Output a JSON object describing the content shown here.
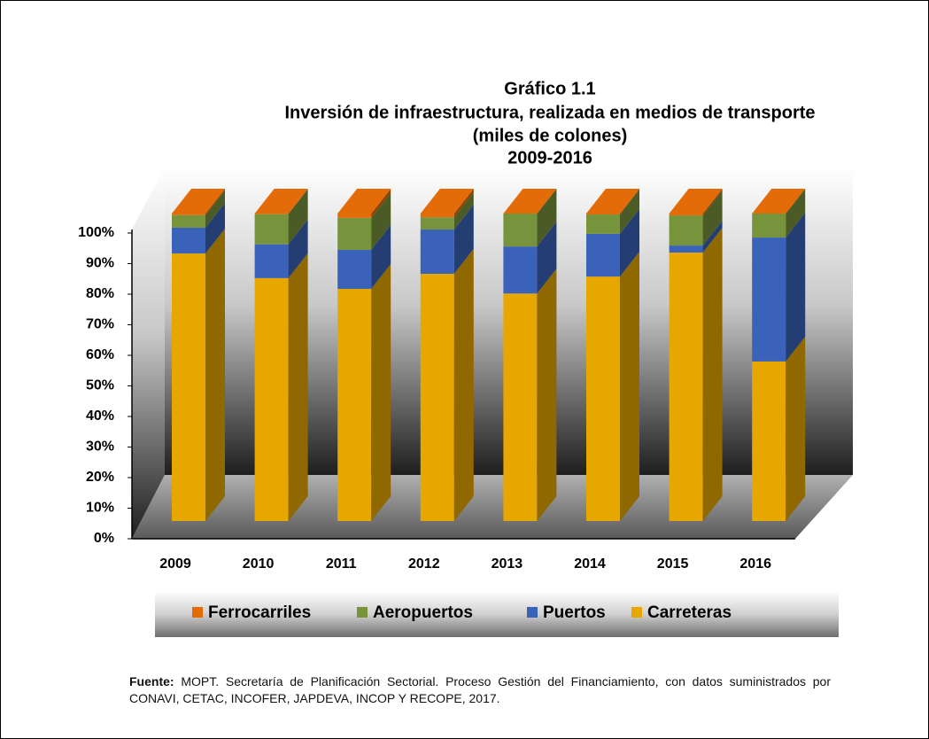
{
  "chart_data": {
    "type": "bar3d_stacked",
    "title": "Gráfico 1.1",
    "subtitle_lines": [
      "Inversión de infraestructura,  realizada en medios de transporte",
      "(miles de colones)",
      "2009-2016"
    ],
    "categories": [
      "2009",
      "2010",
      "2011",
      "2012",
      "2013",
      "2014",
      "2015",
      "2016"
    ],
    "series": [
      {
        "name": "Carreteras",
        "color": "#e6a800",
        "values": [
          87,
          79,
          75.5,
          80.4,
          74,
          79.5,
          87.3,
          51.9
        ]
      },
      {
        "name": "Puertos",
        "color": "#3a62b8",
        "values": [
          8.4,
          11,
          12.7,
          14.4,
          15.3,
          13.9,
          2.3,
          40.3
        ]
      },
      {
        "name": "Aeropuertos",
        "color": "#77933c",
        "values": [
          4.1,
          9.8,
          10.4,
          4,
          10.7,
          6.3,
          9.8,
          7.8
        ]
      },
      {
        "name": "Ferrocarriles",
        "color": "#e36c09",
        "values": [
          0.5,
          0.2,
          1.4,
          1.2,
          0,
          0.3,
          0.6,
          0
        ]
      }
    ],
    "ylim": [
      0,
      100
    ],
    "yticks": [
      {
        "value": 0,
        "label": "0%"
      },
      {
        "value": 10,
        "label": "10%"
      },
      {
        "value": 20,
        "label": "20%"
      },
      {
        "value": 30,
        "label": "30%"
      },
      {
        "value": 40,
        "label": "40%"
      },
      {
        "value": 50,
        "label": "50%"
      },
      {
        "value": 60,
        "label": "60%"
      },
      {
        "value": 70,
        "label": "70%"
      },
      {
        "value": 80,
        "label": "80%"
      },
      {
        "value": 90,
        "label": "90%"
      },
      {
        "value": 100,
        "label": "100%"
      }
    ],
    "source_label": "Fuente:",
    "source_text": "MOPT. Secretaría de Planificación Sectorial. Proceso Gestión del Financiamiento, con datos suministrados por CONAVI, CETAC, INCOFER, JAPDEVA, INCOP Y RECOPE, 2017."
  }
}
